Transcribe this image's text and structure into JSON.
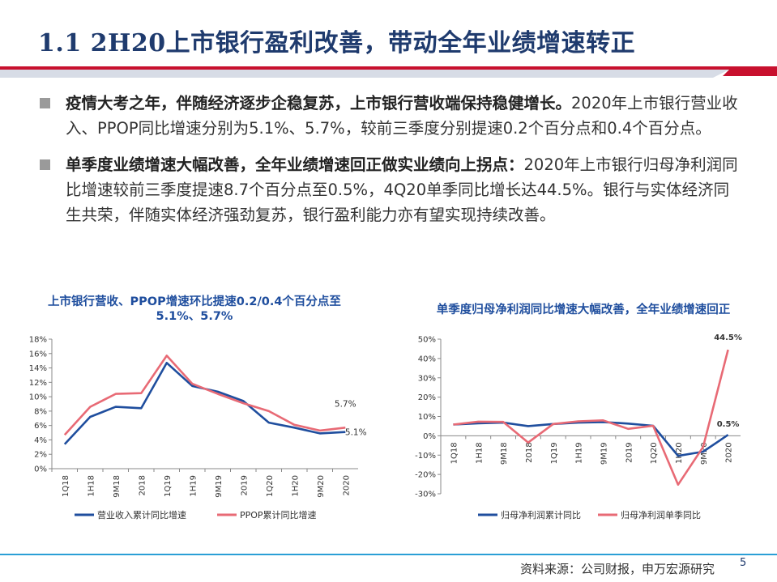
{
  "title": "1.1 2H20上市银行盈利改善，带动全年业绩增速转正",
  "bullets": [
    {
      "bold": "疫情大考之年，伴随经济逐步企稳复苏，上市银行营收端保持稳健增长。",
      "text": "2020年上市银行营业收入、PPOP同比增速分别为5.1%、5.7%，较前三季度分别提速0.2个百分点和0.4个百分点。"
    },
    {
      "bold": "单季度业绩增速大幅改善，全年业绩增速回正做实业绩向上拐点：",
      "text": "2020年上市银行归母净利润同比增速较前三季度提速8.7个百分点至0.5%，4Q20单季同比增长达44.5%。银行与实体经济同生共荣，伴随实体经济强劲复苏，银行盈利能力亦有望实现持续改善。"
    }
  ],
  "colors": {
    "navy": "#1f3b6e",
    "series_blue": "#1f4e9e",
    "series_red": "#e86a75",
    "accent_red": "#c8102e"
  },
  "chart_data": [
    {
      "type": "line",
      "title_line1": "上市银行营收、PPOP增速环比提速0.2/0.4个百分点至",
      "title_line2": "5.1%、5.7%",
      "categories": [
        "1Q18",
        "1H18",
        "9M18",
        "2018",
        "1Q19",
        "1H19",
        "9M19",
        "2019",
        "1Q20",
        "1H20",
        "9M20",
        "2020"
      ],
      "ylim": [
        0,
        18
      ],
      "yticks": [
        0,
        2,
        4,
        6,
        8,
        10,
        12,
        14,
        16,
        18
      ],
      "ytick_labels": [
        "0%",
        "2%",
        "4%",
        "6%",
        "8%",
        "10%",
        "12%",
        "14%",
        "16%",
        "18%"
      ],
      "series": [
        {
          "name": "营业收入累计同比增速",
          "color": "#1f4e9e",
          "values": [
            3.4,
            7.2,
            8.6,
            8.4,
            14.7,
            11.5,
            10.7,
            9.4,
            6.4,
            5.7,
            4.9,
            5.1
          ]
        },
        {
          "name": "PPOP累计同比增速",
          "color": "#e86a75",
          "values": [
            4.7,
            8.6,
            10.4,
            10.5,
            15.7,
            11.8,
            10.4,
            9.1,
            8.0,
            6.1,
            5.3,
            5.7
          ]
        }
      ],
      "annotations": [
        "5.7%",
        "5.1%"
      ]
    },
    {
      "type": "line",
      "title_line1": "单季度归母净利润同比增速大幅改善，全年业绩增速回正",
      "categories": [
        "1Q18",
        "1H18",
        "9M18",
        "2018",
        "1Q19",
        "1H19",
        "9M19",
        "2019",
        "1Q20",
        "1H20",
        "9M20",
        "2020"
      ],
      "ylim": [
        -30,
        50
      ],
      "yticks": [
        -30,
        -20,
        -10,
        0,
        10,
        20,
        30,
        40,
        50
      ],
      "ytick_labels": [
        "-30%",
        "-20%",
        "-10%",
        "0%",
        "10%",
        "20%",
        "30%",
        "40%",
        "50%"
      ],
      "series": [
        {
          "name": "归母净利润累计同比",
          "color": "#1f4e9e",
          "values": [
            5.8,
            6.5,
            6.8,
            5.0,
            6.1,
            6.8,
            7.1,
            6.3,
            5.2,
            -10.4,
            -8.2,
            0.5
          ]
        },
        {
          "name": "归母净利润单季同比",
          "color": "#e86a75",
          "values": [
            5.8,
            7.3,
            7.2,
            -3.5,
            6.1,
            7.5,
            8.0,
            3.6,
            5.2,
            -25.3,
            -5.8,
            44.5
          ]
        }
      ],
      "annotations": [
        "44.5%",
        "0.5%"
      ]
    }
  ],
  "footer": {
    "source": "资料来源：公司财报，申万宏源研究",
    "page": "5"
  }
}
